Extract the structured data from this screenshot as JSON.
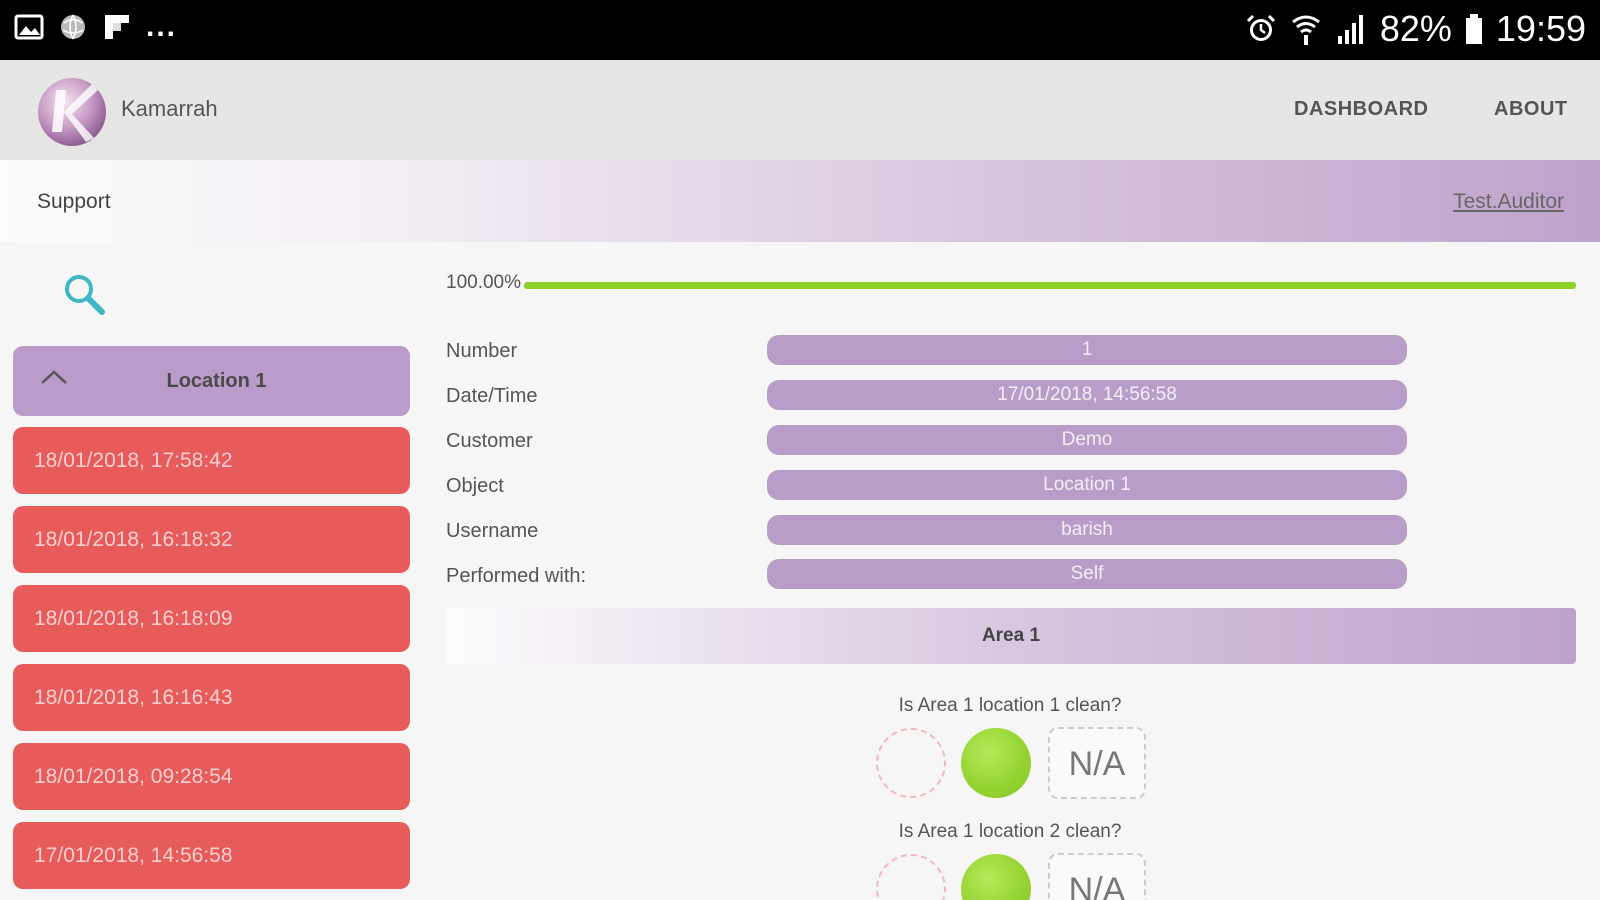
{
  "status_bar": {
    "left_icons": [
      "image-icon",
      "globe-icon",
      "flipboard-icon"
    ],
    "more": "...",
    "right_icons": [
      "alarm-icon",
      "wifi-icon",
      "signal-icon",
      "battery-icon"
    ],
    "battery": "82%",
    "time": "19:59"
  },
  "app_bar": {
    "brand": "Kamarrah",
    "nav": [
      "DASHBOARD",
      "ABOUT"
    ]
  },
  "subheader": {
    "title": "Support",
    "user": "Test.Auditor"
  },
  "sidebar": {
    "search_icon": "search-icon",
    "location_title": "Location 1",
    "entries": [
      "18/01/2018, 17:58:42",
      "18/01/2018, 16:18:32",
      "18/01/2018, 16:18:09",
      "18/01/2018, 16:16:43",
      "18/01/2018, 09:28:54",
      "17/01/2018, 14:56:58"
    ]
  },
  "progress": {
    "label": "100.00%",
    "value": 1.0
  },
  "fields": [
    {
      "label": "Number",
      "value": "1"
    },
    {
      "label": "Date/Time",
      "value": "17/01/2018, 14:56:58"
    },
    {
      "label": "Customer",
      "value": "Demo"
    },
    {
      "label": "Object",
      "value": "Location 1"
    },
    {
      "label": "Username",
      "value": "barish"
    },
    {
      "label": "Performed with:",
      "value": "Self"
    }
  ],
  "area": {
    "title": "Area 1",
    "questions": [
      {
        "text": "Is Area 1 location 1 clean?",
        "na": "N/A",
        "selected": "yes"
      },
      {
        "text": "Is Area 1 location 2 clean?",
        "na": "N/A",
        "selected": "yes"
      }
    ]
  },
  "colors": {
    "accent_purple": "#bb9bc9",
    "entry_red": "#e75b5b",
    "progress_green": "#8ed12a",
    "yes_green": "#95d432"
  }
}
